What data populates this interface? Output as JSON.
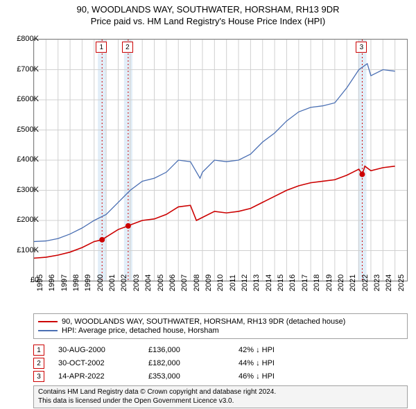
{
  "title_line1": "90, WOODLANDS WAY, SOUTHWATER, HORSHAM, RH13 9DR",
  "title_line2": "Price paid vs. HM Land Registry's House Price Index (HPI)",
  "chart": {
    "type": "line",
    "background_color": "#ffffff",
    "grid_color": "#d0d0d0",
    "border_color": "#808080",
    "x_min": 1995,
    "x_max": 2026,
    "y_min": 0,
    "y_max": 800000,
    "y_ticks": [
      0,
      100000,
      200000,
      300000,
      400000,
      500000,
      600000,
      700000,
      800000
    ],
    "y_tick_labels": [
      "£0",
      "£100K",
      "£200K",
      "£300K",
      "£400K",
      "£500K",
      "£600K",
      "£700K",
      "£800K"
    ],
    "x_ticks": [
      1995,
      1996,
      1997,
      1998,
      1999,
      2000,
      2001,
      2002,
      2003,
      2004,
      2005,
      2006,
      2007,
      2008,
      2009,
      2010,
      2011,
      2012,
      2013,
      2014,
      2015,
      2016,
      2017,
      2018,
      2019,
      2020,
      2021,
      2022,
      2023,
      2024,
      2025
    ],
    "series": [
      {
        "id": "property",
        "label": "90, WOODLANDS WAY, SOUTHWATER, HORSHAM, RH13 9DR (detached house)",
        "color": "#cc0000",
        "line_width": 1.6,
        "data": [
          [
            1995,
            75000
          ],
          [
            1996,
            78000
          ],
          [
            1997,
            85000
          ],
          [
            1998,
            95000
          ],
          [
            1999,
            110000
          ],
          [
            2000,
            130000
          ],
          [
            2000.66,
            136000
          ],
          [
            2001,
            145000
          ],
          [
            2002,
            170000
          ],
          [
            2002.83,
            182000
          ],
          [
            2003,
            185000
          ],
          [
            2004,
            200000
          ],
          [
            2005,
            205000
          ],
          [
            2006,
            220000
          ],
          [
            2007,
            245000
          ],
          [
            2008,
            250000
          ],
          [
            2008.5,
            200000
          ],
          [
            2009,
            210000
          ],
          [
            2010,
            230000
          ],
          [
            2011,
            225000
          ],
          [
            2012,
            230000
          ],
          [
            2013,
            240000
          ],
          [
            2014,
            260000
          ],
          [
            2015,
            280000
          ],
          [
            2016,
            300000
          ],
          [
            2017,
            315000
          ],
          [
            2018,
            325000
          ],
          [
            2019,
            330000
          ],
          [
            2020,
            335000
          ],
          [
            2021,
            350000
          ],
          [
            2022,
            370000
          ],
          [
            2022.28,
            353000
          ],
          [
            2022.5,
            380000
          ],
          [
            2023,
            365000
          ],
          [
            2024,
            375000
          ],
          [
            2025,
            380000
          ]
        ]
      },
      {
        "id": "hpi",
        "label": "HPI: Average price, detached house, Horsham",
        "color": "#4a6fb3",
        "line_width": 1.3,
        "data": [
          [
            1995,
            130000
          ],
          [
            1996,
            132000
          ],
          [
            1997,
            140000
          ],
          [
            1998,
            155000
          ],
          [
            1999,
            175000
          ],
          [
            2000,
            200000
          ],
          [
            2001,
            220000
          ],
          [
            2002,
            260000
          ],
          [
            2003,
            300000
          ],
          [
            2004,
            330000
          ],
          [
            2005,
            340000
          ],
          [
            2006,
            360000
          ],
          [
            2007,
            400000
          ],
          [
            2008,
            395000
          ],
          [
            2008.8,
            340000
          ],
          [
            2009,
            360000
          ],
          [
            2010,
            400000
          ],
          [
            2011,
            395000
          ],
          [
            2012,
            400000
          ],
          [
            2013,
            420000
          ],
          [
            2014,
            460000
          ],
          [
            2015,
            490000
          ],
          [
            2016,
            530000
          ],
          [
            2017,
            560000
          ],
          [
            2018,
            575000
          ],
          [
            2019,
            580000
          ],
          [
            2020,
            590000
          ],
          [
            2021,
            640000
          ],
          [
            2022,
            700000
          ],
          [
            2022.7,
            720000
          ],
          [
            2023,
            680000
          ],
          [
            2024,
            700000
          ],
          [
            2025,
            695000
          ]
        ]
      }
    ],
    "sale_markers": [
      {
        "num": "1",
        "x": 2000.66,
        "y": 136000,
        "band_color": "#cfe2f3"
      },
      {
        "num": "2",
        "x": 2002.83,
        "y": 182000,
        "band_color": "#cfe2f3"
      },
      {
        "num": "3",
        "x": 2022.28,
        "y": 353000,
        "band_color": "#cfe2f3"
      }
    ],
    "band_half_width_years": 0.35,
    "marker_line_color": "#cc0000",
    "marker_dot_color": "#cc0000"
  },
  "legend": {
    "border_color": "#a0a0a0"
  },
  "sale_table": [
    {
      "num": "1",
      "date": "30-AUG-2000",
      "price": "£136,000",
      "delta": "42% ↓ HPI"
    },
    {
      "num": "2",
      "date": "30-OCT-2002",
      "price": "£182,000",
      "delta": "44% ↓ HPI"
    },
    {
      "num": "3",
      "date": "14-APR-2022",
      "price": "£353,000",
      "delta": "46% ↓ HPI"
    }
  ],
  "footer_line1": "Contains HM Land Registry data © Crown copyright and database right 2024.",
  "footer_line2": "This data is licensed under the Open Government Licence v3.0."
}
